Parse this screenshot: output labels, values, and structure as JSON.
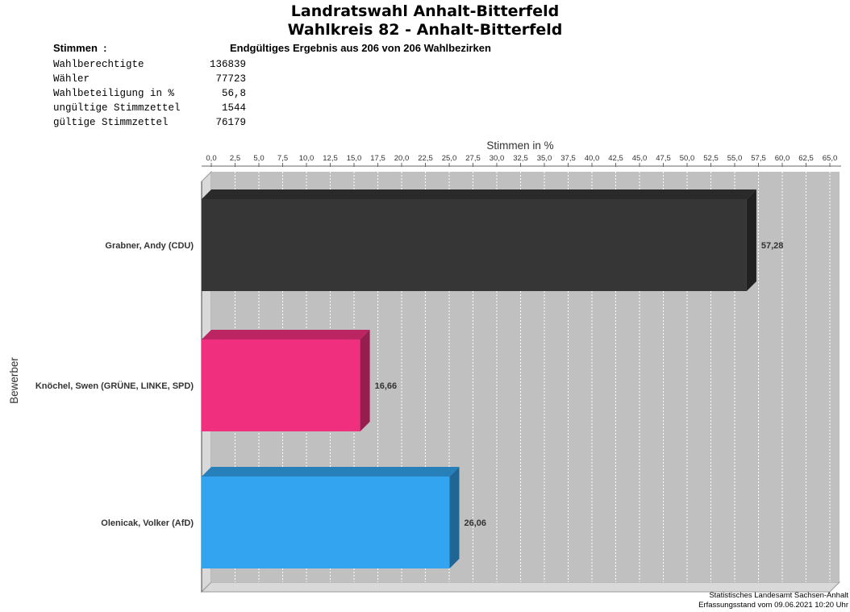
{
  "title": [
    "Landratswahl Anhalt-Bitterfeld",
    "Wahlkreis 82 - Anhalt-Bitterfeld"
  ],
  "stats_header": "Stimmen  :",
  "result_status": "Endgültiges Ergebnis aus 206 von 206 Wahlbezirken",
  "stats": [
    {
      "label": "Wahlberechtigte",
      "value": "136839"
    },
    {
      "label": "Wähler",
      "value": "77723"
    },
    {
      "label": "Wahlbeteiligung in %",
      "value": "56,8"
    },
    {
      "label": "ungültige Stimmzettel",
      "value": "1544"
    },
    {
      "label": "gültige Stimmzettel",
      "value": "76179"
    }
  ],
  "chart_data": {
    "type": "bar",
    "orientation": "horizontal",
    "xlabel": "Stimmen in %",
    "ylabel": "Bewerber",
    "xlim": [
      0,
      65
    ],
    "tick_step": 2.5,
    "grid": true,
    "categories": [
      "Grabner, Andy (CDU)",
      "Knöchel, Swen (GRÜNE, LINKE, SPD)",
      "Olenicak, Volker (AfD)"
    ],
    "values": [
      57.28,
      16.66,
      26.06
    ],
    "value_labels": [
      "57,28",
      "16,66",
      "26,06"
    ],
    "colors": [
      "#363636",
      "#f0307e",
      "#33a4ef"
    ]
  },
  "footer": [
    "Statistisches Landesamt Sachsen-Anhalt",
    "Erfassungsstand vom 09.06.2021 10:20 Uhr"
  ]
}
